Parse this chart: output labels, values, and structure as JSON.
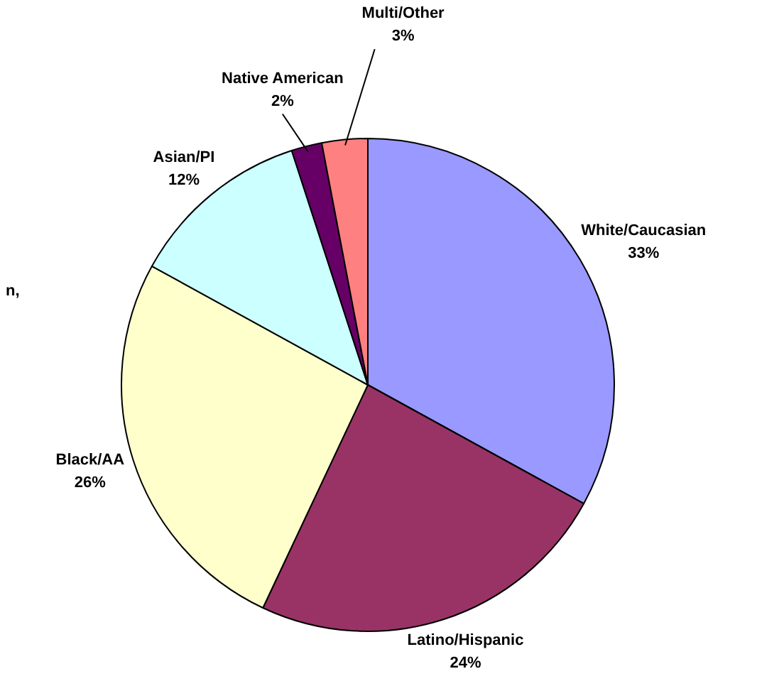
{
  "chart_data": {
    "type": "pie",
    "categories": [
      "White/Caucasian",
      "Latino/Hispanic",
      "Black/AA",
      "Asian/PI",
      "Native American",
      "Multi/Other"
    ],
    "values": [
      33,
      24,
      26,
      12,
      2,
      3
    ],
    "colors": [
      "#9999ff",
      "#993366",
      "#ffffcc",
      "#ccffff",
      "#660066",
      "#ff8080"
    ],
    "value_labels": [
      "33%",
      "24%",
      "26%",
      "12%",
      "2%",
      "3%"
    ],
    "legend": false,
    "annotations": [
      "n,"
    ]
  }
}
